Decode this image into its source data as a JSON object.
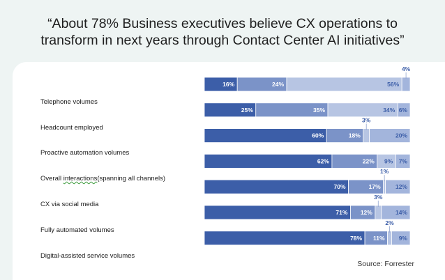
{
  "title_line1": "“About 78% Business executives believe CX operations to",
  "title_line2": "transform in next  years through Contact Center AI initiatives”",
  "source": "Source: Forrester",
  "chart_data": {
    "type": "bar",
    "orientation": "horizontal",
    "stacked": true,
    "percent_axis": true,
    "categories": [
      "Telephone volumes",
      "Headcount employed",
      "Proactive automation volumes",
      "Overall interactions(spanning all channels)",
      "CX via social media",
      "Fully automated volumes",
      "Digital-assisted service volumes"
    ],
    "series": [
      {
        "values": [
          16,
          25,
          60,
          62,
          70,
          71,
          78
        ],
        "color": "#3c5ea8"
      },
      {
        "values": [
          24,
          35,
          18,
          22,
          17,
          12,
          11
        ],
        "color": "#7b93c8"
      },
      {
        "values": [
          56,
          34,
          3,
          9,
          1,
          3,
          2
        ],
        "color": "#b7c5e3"
      },
      {
        "values": [
          4,
          6,
          20,
          7,
          12,
          14,
          9
        ],
        "color": "#a3b5dc"
      }
    ],
    "data_labels": [
      [
        "16%",
        "24%",
        "56%",
        "4%"
      ],
      [
        "25%",
        "35%",
        "34%",
        "6%"
      ],
      [
        "60%",
        "18%",
        "3%",
        "20%"
      ],
      [
        "62%",
        "22%",
        "9%",
        "7%"
      ],
      [
        "70%",
        "17%",
        "1%",
        "12%"
      ],
      [
        "71%",
        "12%",
        "3%",
        "14%"
      ],
      [
        "78%",
        "11%",
        "2%",
        "9%"
      ]
    ],
    "legend": "none",
    "grid": false
  }
}
